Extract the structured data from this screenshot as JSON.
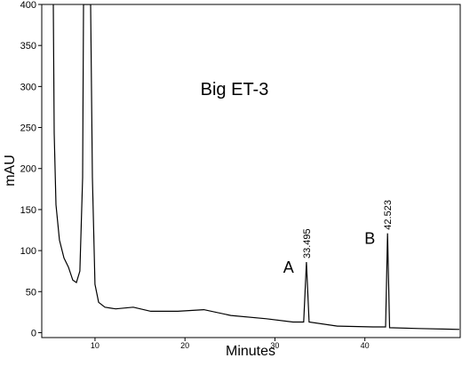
{
  "chart_data": {
    "type": "line",
    "title": "Big ET-3",
    "x_label": "Minutes",
    "y_label": "mAU",
    "x": [
      5.36,
      5.46,
      5.66,
      6.05,
      6.55,
      7.04,
      7.53,
      7.93,
      8.32,
      8.62,
      8.72,
      9.51,
      9.71,
      10.0,
      10.4,
      11.1,
      12.3,
      14.25,
      16.2,
      19.2,
      22.1,
      25.1,
      29.05,
      32.0,
      33.2,
      33.5,
      33.8,
      36.95,
      40.9,
      42.3,
      42.52,
      42.75,
      46.0,
      50.5
    ],
    "series": [
      {
        "name": "mAU",
        "color": "#000000",
        "values": [
          400,
          243,
          156,
          113,
          91,
          80,
          64,
          61,
          75,
          189,
          400,
          400,
          189,
          59,
          37,
          31,
          29,
          31,
          26,
          26,
          28,
          21,
          17,
          13,
          13,
          86,
          13,
          8,
          7,
          7,
          121,
          6,
          5,
          4
        ]
      }
    ],
    "peaks": [
      {
        "label": "A",
        "time": 33.495
      },
      {
        "label": "B",
        "time": 42.523
      }
    ],
    "xlim": [
      4.08,
      50.6
    ],
    "ylim": [
      -6,
      400
    ],
    "xticks": [
      10,
      20,
      30,
      40
    ],
    "yticks": [
      0,
      50,
      100,
      150,
      200,
      250,
      300,
      350,
      400
    ]
  }
}
